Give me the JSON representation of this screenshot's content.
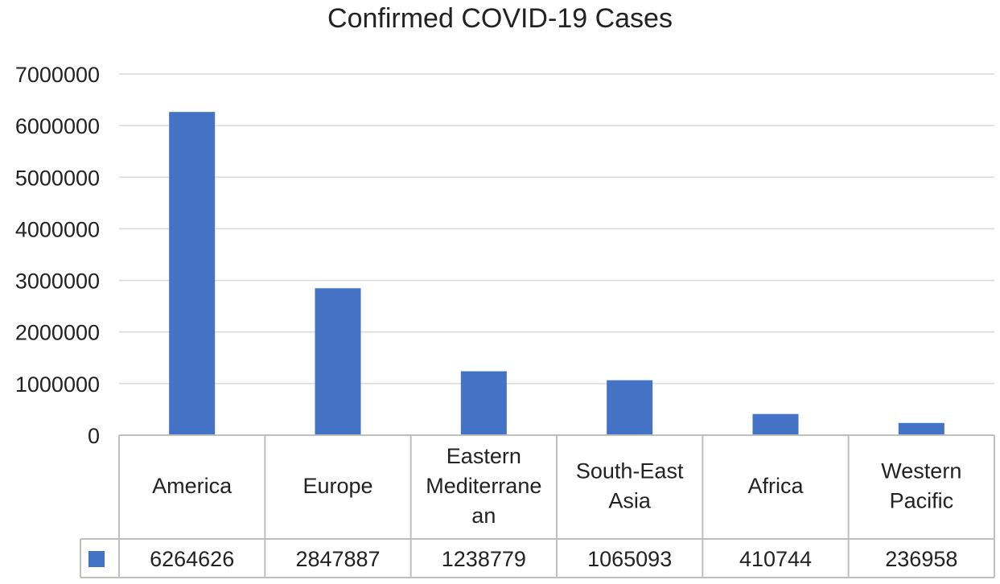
{
  "chart_data": {
    "type": "bar",
    "title": "Confirmed COVID-19 Cases",
    "categories": [
      [
        "America"
      ],
      [
        "Europe"
      ],
      [
        "Eastern",
        "Mediterrane",
        "an"
      ],
      [
        "South-East",
        "Asia"
      ],
      [
        "Africa"
      ],
      [
        "Western",
        "Pacific"
      ]
    ],
    "values": [
      6264626,
      2847887,
      1238779,
      1065093,
      410744,
      236958
    ],
    "value_labels": [
      "6264626",
      "2847887",
      "1238779",
      "1065093",
      "410744",
      "236958"
    ],
    "ylim": [
      0,
      7000000
    ],
    "yticks": [
      0,
      1000000,
      2000000,
      3000000,
      4000000,
      5000000,
      6000000,
      7000000
    ],
    "ytick_labels": [
      "0",
      "1000000",
      "2000000",
      "3000000",
      "4000000",
      "5000000",
      "6000000",
      "7000000"
    ],
    "grid": true,
    "data_table": true,
    "bar_color": "#4472c4",
    "grid_color": "#d9d9d9",
    "table_border_color": "#bfbfbf"
  }
}
